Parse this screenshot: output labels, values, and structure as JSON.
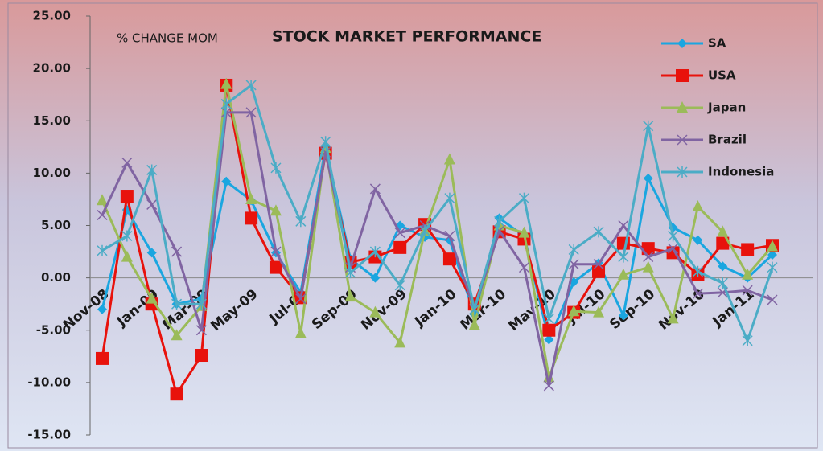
{
  "chart_data": {
    "type": "line",
    "title": "STOCK MARKET PERFORMANCE",
    "subtitle": "% CHANGE MOM",
    "categories": [
      "Nov-08",
      null,
      "Jan-09",
      null,
      "Mar-09",
      null,
      "May-09",
      null,
      "Jul-09",
      null,
      "Sep-09",
      null,
      "Nov-09",
      null,
      "Jan-10",
      null,
      "Mar-10",
      null,
      "May-10",
      null,
      "Jul-10",
      null,
      "Sep-10",
      null,
      "Nov-10",
      null,
      "Jan-11",
      null
    ],
    "series": [
      {
        "name": "SA",
        "color": "#1aa6e0",
        "marker": "diamond",
        "values": [
          -3.0,
          6.5,
          2.4,
          -2.5,
          -2.0,
          9.2,
          7.4,
          2.4,
          -1.4,
          12.5,
          1.8,
          0.0,
          5.0,
          3.9,
          3.6,
          -3.5,
          5.7,
          4.0,
          -5.9,
          -0.4,
          1.4,
          -3.6,
          9.5,
          4.8,
          3.6,
          1.1,
          0.0,
          2.2
        ]
      },
      {
        "name": "USA",
        "color": "#e8120c",
        "marker": "square",
        "values": [
          -7.7,
          7.8,
          -2.5,
          -11.1,
          -7.4,
          18.4,
          5.7,
          1.0,
          -1.9,
          11.9,
          1.5,
          2.0,
          2.9,
          5.1,
          1.8,
          -2.5,
          4.4,
          3.7,
          -5.0,
          -3.3,
          0.6,
          3.3,
          2.8,
          2.4,
          0.3,
          3.3,
          2.7,
          3.1
        ]
      },
      {
        "name": "Japan",
        "color": "#9bbb59",
        "marker": "triangle",
        "values": [
          7.4,
          2.0,
          -2.0,
          -5.5,
          -2.7,
          18.5,
          7.5,
          6.4,
          -5.3,
          12.4,
          -1.8,
          -3.3,
          -6.2,
          4.5,
          11.3,
          -4.5,
          5.0,
          4.3,
          -9.5,
          -3.2,
          -3.3,
          0.3,
          1.0,
          -3.9,
          6.8,
          4.4,
          0.3,
          3.0
        ]
      },
      {
        "name": "Brazil",
        "color": "#8064a2",
        "marker": "x",
        "values": [
          6.0,
          11.0,
          7.0,
          2.5,
          -5.0,
          15.8,
          15.8,
          2.5,
          -2.0,
          12.0,
          1.0,
          8.5,
          4.3,
          5.0,
          4.0,
          -3.0,
          4.5,
          1.0,
          -10.3,
          1.3,
          1.3,
          5.0,
          2.0,
          2.8,
          -1.5,
          -1.4,
          -1.2,
          -2.1
        ]
      },
      {
        "name": "Indonesia",
        "color": "#4bacc6",
        "marker": "star",
        "values": [
          2.6,
          4.0,
          10.3,
          -2.5,
          -2.5,
          16.6,
          18.4,
          10.5,
          5.4,
          13.0,
          0.5,
          2.5,
          -0.7,
          4.5,
          7.6,
          -3.0,
          5.4,
          7.6,
          -3.9,
          2.7,
          4.4,
          2.0,
          14.5,
          4.0,
          0.6,
          -0.5,
          -6.0,
          1.0
        ]
      }
    ],
    "ylim": [
      -15,
      25
    ],
    "yticks": [
      {
        "value": -15,
        "label": "-15.00"
      },
      {
        "value": -10,
        "label": "-10.00"
      },
      {
        "value": -5,
        "label": "-5.00"
      },
      {
        "value": 0,
        "label": "0.00"
      },
      {
        "value": 5,
        "label": "5.00"
      },
      {
        "value": 10,
        "label": "10.00"
      },
      {
        "value": 15,
        "label": "15.00"
      },
      {
        "value": 20,
        "label": "20.00"
      },
      {
        "value": 25,
        "label": "25.00"
      }
    ],
    "legend": "top-right"
  }
}
